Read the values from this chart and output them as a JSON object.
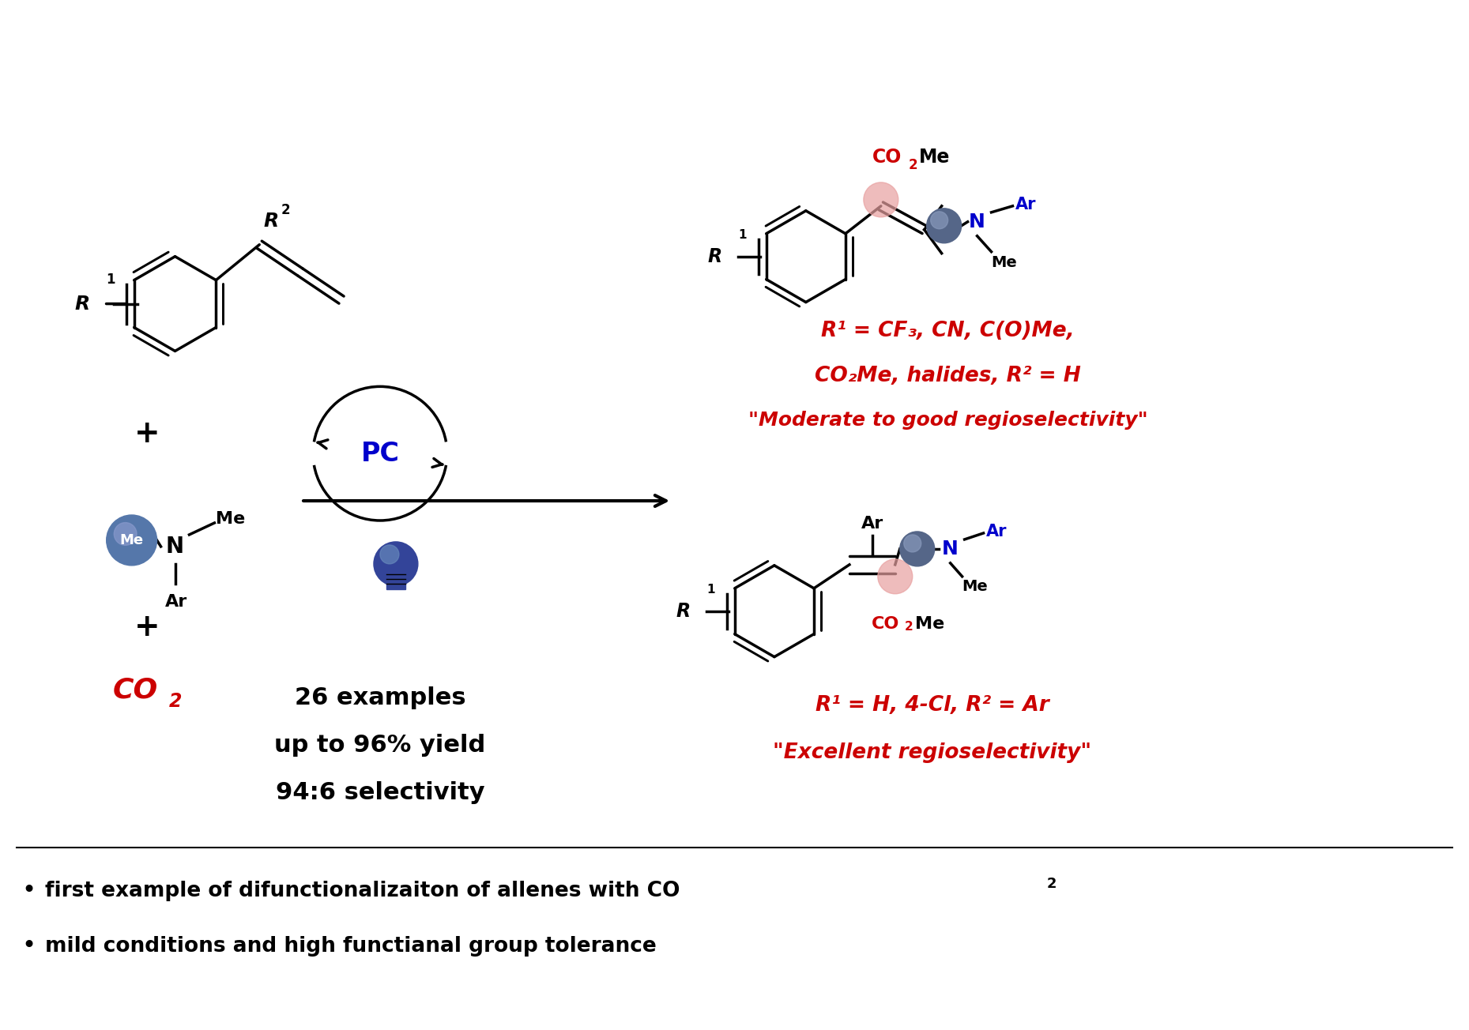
{
  "bg_color": "#ffffff",
  "fig_width": 18.59,
  "fig_height": 13.04,
  "title": "",
  "bullet1": "first example of difunctionalizaiton of allenes with CO",
  "bullet1_sub": "2",
  "bullet2": "mild conditions and high functianal group tolerance",
  "red_color": "#cc0000",
  "blue_color": "#0000cc",
  "black_color": "#000000",
  "pink_color": "#e8a0a0",
  "steelblue_color": "#4477aa",
  "text_26examples": "26 examples",
  "text_yield": "up to 96% yield",
  "text_selectivity": "94:6 selectivity",
  "red_line1": "R¹ = CF₃, CN, C(O)Me,",
  "red_line2": "CO₂Me, halides, R² = H",
  "red_quote1": "\"Moderate to good regioselectivity\"",
  "red_line3": "R¹ = H, 4-Cl, R² = Ar",
  "red_quote2": "\"Excellent regioselectivity\""
}
